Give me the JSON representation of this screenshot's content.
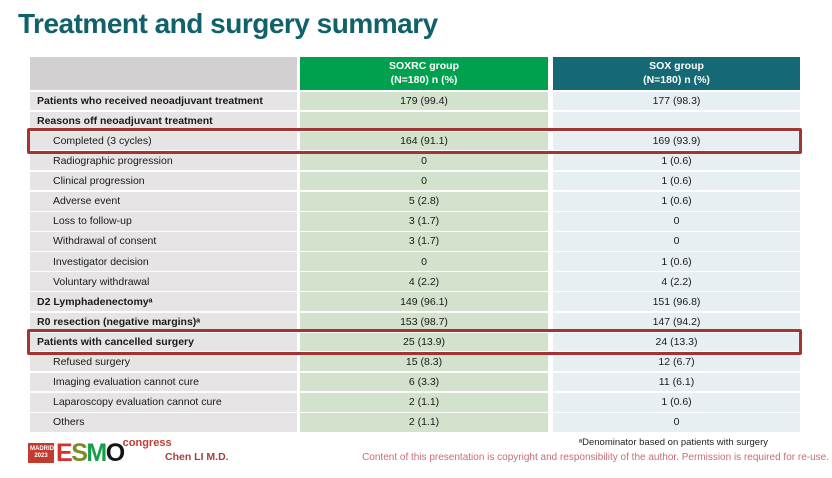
{
  "title": "Treatment and surgery summary",
  "table": {
    "header": {
      "soxrc_line1": "SOXRC group",
      "soxrc_line2": "(N=180)  n (%)",
      "sox_line1": "SOX group",
      "sox_line2": "(N=180)  n (%)"
    },
    "rows": [
      {
        "label": "Patients who received neoadjuvant treatment",
        "soxrc": "179 (99.4)",
        "sox": "177 (98.3)",
        "bold": true,
        "indent": false,
        "highlight": false
      },
      {
        "label": "Reasons off neoadjuvant treatment",
        "soxrc": "",
        "sox": "",
        "bold": true,
        "indent": false,
        "highlight": false
      },
      {
        "label": "Completed (3 cycles)",
        "soxrc": "164 (91.1)",
        "sox": "169 (93.9)",
        "bold": false,
        "indent": true,
        "highlight": true
      },
      {
        "label": "Radiographic progression",
        "soxrc": "0",
        "sox": "1 (0.6)",
        "bold": false,
        "indent": true,
        "highlight": false
      },
      {
        "label": "Clinical progression",
        "soxrc": "0",
        "sox": "1 (0.6)",
        "bold": false,
        "indent": true,
        "highlight": false
      },
      {
        "label": "Adverse event",
        "soxrc": "5 (2.8)",
        "sox": "1 (0.6)",
        "bold": false,
        "indent": true,
        "highlight": false
      },
      {
        "label": "Loss to follow-up",
        "soxrc": "3 (1.7)",
        "sox": "0",
        "bold": false,
        "indent": true,
        "highlight": false
      },
      {
        "label": "Withdrawal of consent",
        "soxrc": "3 (1.7)",
        "sox": "0",
        "bold": false,
        "indent": true,
        "highlight": false
      },
      {
        "label": "Investigator decision",
        "soxrc": "0",
        "sox": "1 (0.6)",
        "bold": false,
        "indent": true,
        "highlight": false
      },
      {
        "label": "Voluntary withdrawal",
        "soxrc": "4 (2.2)",
        "sox": "4 (2.2)",
        "bold": false,
        "indent": true,
        "highlight": false
      },
      {
        "label": "D2 Lymphadenectomyᵃ",
        "soxrc": "149 (96.1)",
        "sox": "151 (96.8)",
        "bold": true,
        "indent": false,
        "highlight": false
      },
      {
        "label": "R0 resection (negative margins)ᵃ",
        "soxrc": "153 (98.7)",
        "sox": "147 (94.2)",
        "bold": true,
        "indent": false,
        "highlight": false
      },
      {
        "label": "Patients with cancelled surgery",
        "soxrc": "25 (13.9)",
        "sox": "24 (13.3)",
        "bold": true,
        "indent": false,
        "highlight": true
      },
      {
        "label": "Refused surgery",
        "soxrc": "15 (8.3)",
        "sox": "12 (6.7)",
        "bold": false,
        "indent": true,
        "highlight": false
      },
      {
        "label": "Imaging evaluation cannot cure",
        "soxrc": "6 (3.3)",
        "sox": "11 (6.1)",
        "bold": false,
        "indent": true,
        "highlight": false
      },
      {
        "label": "Laparoscopy evaluation cannot cure",
        "soxrc": "2 (1.1)",
        "sox": "1 (0.6)",
        "bold": false,
        "indent": true,
        "highlight": false
      },
      {
        "label": "Others",
        "soxrc": "2 (1.1)",
        "sox": "0",
        "bold": false,
        "indent": true,
        "highlight": false
      }
    ]
  },
  "footer": {
    "footnote": "ᵃDenominator based on patients with surgery",
    "author": "Chen LI M.D.",
    "copyright": "Content of this presentation is copyright and responsibility of the author. Permission is required for re-use."
  },
  "logo": {
    "madrid_line1": "MADRID",
    "madrid_line2": "2023",
    "letters": [
      "E",
      "S",
      "M",
      "O"
    ],
    "congress": "congress"
  },
  "colors": {
    "title_teal": "#11616b",
    "soxrc_header_green": "#00a14e",
    "sox_header_teal": "#156974",
    "label_header_gray": "#d2d0d0",
    "label_cell_gray": "#e6e4e5",
    "soxrc_cell_green": "#d2e2cc",
    "sox_cell_blue": "#e8eff2",
    "highlight_red": "#a23432",
    "copyright_pink": "#c76d75",
    "logo_red": "#c23b2e"
  }
}
